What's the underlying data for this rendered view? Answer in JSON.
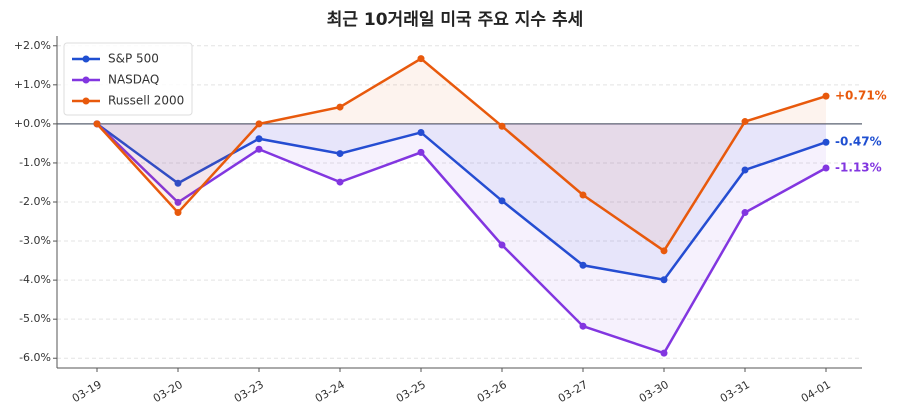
{
  "chart_data": {
    "type": "line",
    "title": "최근 10거래일 미국 주요 지수 추세",
    "categories": [
      "03-19",
      "03-20",
      "03-23",
      "03-24",
      "03-25",
      "03-26",
      "03-27",
      "03-30",
      "03-31",
      "04-01"
    ],
    "series": [
      {
        "name": "S&P 500",
        "color": "#1f4fd1",
        "values": [
          0,
          -1.52,
          -0.38,
          -0.76,
          -0.22,
          -1.97,
          -3.62,
          -3.99,
          -1.18,
          -0.47
        ],
        "value_labels": [
          null,
          null,
          null,
          null,
          null,
          null,
          null,
          null,
          null,
          "-0.47%"
        ]
      },
      {
        "name": "NASDAQ",
        "color": "#8236e0",
        "values": [
          0,
          -2.01,
          -0.65,
          -1.49,
          -0.73,
          -3.1,
          -5.18,
          -5.87,
          -2.27,
          -1.13
        ],
        "value_labels": [
          null,
          null,
          null,
          null,
          null,
          null,
          null,
          null,
          null,
          "-1.13%"
        ]
      },
      {
        "name": "Russell 2000",
        "color": "#e8590c",
        "values": [
          0,
          -2.27,
          0.0,
          0.43,
          1.67,
          -0.06,
          -1.82,
          -3.25,
          0.06,
          0.71
        ],
        "value_labels": [
          null,
          null,
          null,
          null,
          null,
          null,
          null,
          null,
          null,
          "+0.71%"
        ]
      }
    ],
    "ylim": [
      -6.25,
      2.25
    ],
    "yticks": [
      {
        "value": 2,
        "label": "+2.0%"
      },
      {
        "value": 1,
        "label": "+1.0%"
      },
      {
        "value": 0,
        "label": "+0.0%"
      },
      {
        "value": -1,
        "label": "-1.0%"
      },
      {
        "value": -2,
        "label": "-2.0%"
      },
      {
        "value": -3,
        "label": "-3.0%"
      },
      {
        "value": -4,
        "label": "-4.0%"
      },
      {
        "value": -5,
        "label": "-5.0%"
      },
      {
        "value": -6,
        "label": "-6.0%"
      }
    ],
    "grid": true,
    "legend": "upper-left"
  }
}
